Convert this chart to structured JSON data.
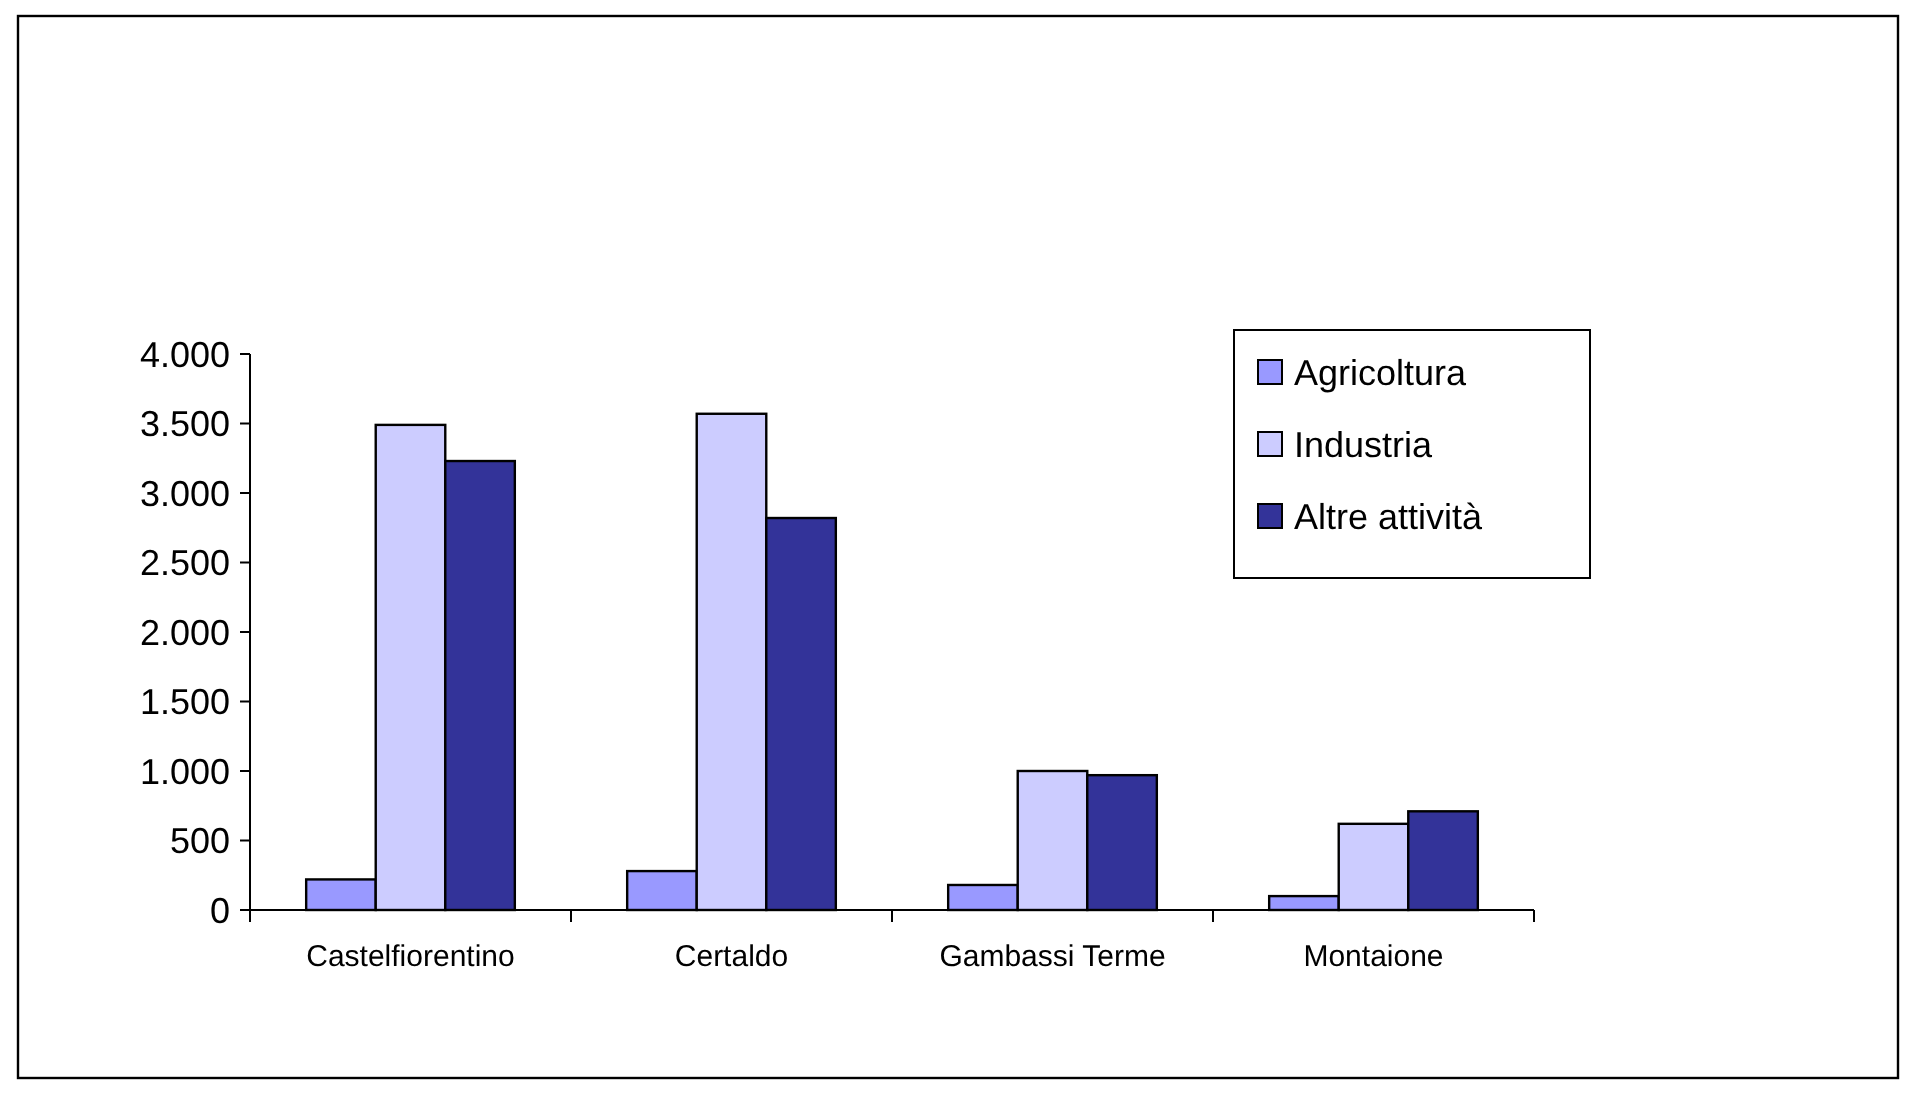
{
  "chart_data": {
    "type": "bar",
    "categories": [
      "Castelfiorentino",
      "Certaldo",
      "Gambassi Terme",
      "Montaione"
    ],
    "series": [
      {
        "name": "Agricoltura",
        "color": "#9999ff",
        "values": [
          220,
          280,
          180,
          100
        ]
      },
      {
        "name": "Industria",
        "color": "#ccccff",
        "values": [
          3490,
          3570,
          1000,
          620
        ]
      },
      {
        "name": "Altre attività",
        "color": "#333399",
        "values": [
          3230,
          2820,
          970,
          710
        ]
      }
    ],
    "ylim": [
      0,
      4000
    ],
    "yticks": [
      {
        "value": 0,
        "label": "0"
      },
      {
        "value": 500,
        "label": "500"
      },
      {
        "value": 1000,
        "label": "1.000"
      },
      {
        "value": 1500,
        "label": "1.500"
      },
      {
        "value": 2000,
        "label": "2.000"
      },
      {
        "value": 2500,
        "label": "2.500"
      },
      {
        "value": 3000,
        "label": "3.000"
      },
      {
        "value": 3500,
        "label": "3.500"
      },
      {
        "value": 4000,
        "label": "4.000"
      }
    ],
    "grid": false,
    "legend": "top right"
  }
}
